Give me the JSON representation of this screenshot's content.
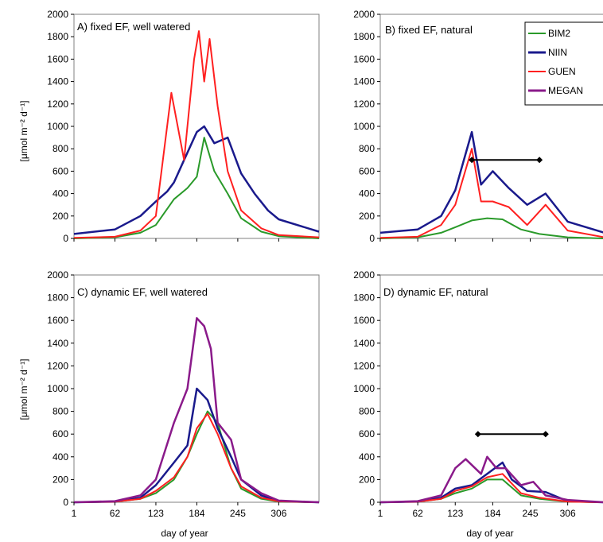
{
  "figure": {
    "xlabel": "day of year",
    "ylabel": "[μmol m⁻² d⁻¹]",
    "x_ticks": [
      "1",
      "62",
      "123",
      "184",
      "245",
      "306"
    ],
    "y_ticks": [
      "0",
      "200",
      "400",
      "600",
      "800",
      "1000",
      "1200",
      "1400",
      "1600",
      "1800",
      "2000"
    ]
  },
  "legend": {
    "items": [
      {
        "name": "BIM2",
        "color": "#2a9a2a"
      },
      {
        "name": "NIIN",
        "color": "#1a1a8c"
      },
      {
        "name": "GUEN",
        "color": "#ff2020"
      },
      {
        "name": "MEGAN",
        "color": "#8a1a8a"
      }
    ]
  },
  "chart_data": [
    {
      "type": "line",
      "title": "A) fixed EF, well watered",
      "ylim": [
        0,
        2000
      ],
      "xlim": [
        1,
        366
      ],
      "series": [
        {
          "name": "BIM2",
          "color": "#2a9a2a",
          "x": [
            1,
            62,
            100,
            123,
            150,
            170,
            184,
            195,
            210,
            230,
            250,
            280,
            306,
            366
          ],
          "values": [
            0,
            10,
            50,
            120,
            350,
            450,
            550,
            900,
            600,
            400,
            180,
            60,
            20,
            0
          ]
        },
        {
          "name": "NIIN",
          "color": "#1a1a8c",
          "x": [
            1,
            62,
            100,
            123,
            140,
            150,
            165,
            184,
            195,
            210,
            230,
            250,
            270,
            290,
            306,
            366
          ],
          "values": [
            40,
            80,
            200,
            330,
            420,
            500,
            700,
            950,
            1000,
            850,
            900,
            580,
            400,
            250,
            170,
            60
          ]
        },
        {
          "name": "GUEN",
          "color": "#ff2020",
          "x": [
            1,
            62,
            100,
            123,
            146,
            165,
            180,
            187,
            195,
            203,
            215,
            230,
            250,
            280,
            306,
            366
          ],
          "values": [
            5,
            15,
            70,
            200,
            1300,
            700,
            1600,
            1850,
            1400,
            1780,
            1180,
            600,
            250,
            90,
            30,
            10
          ]
        }
      ],
      "bars": []
    },
    {
      "type": "line",
      "title": "B) fixed EF, natural",
      "ylim": [
        0,
        2000
      ],
      "xlim": [
        1,
        366
      ],
      "series": [
        {
          "name": "BIM2",
          "color": "#2a9a2a",
          "x": [
            1,
            62,
            100,
            123,
            150,
            175,
            200,
            230,
            260,
            306,
            366
          ],
          "values": [
            0,
            10,
            50,
            100,
            160,
            180,
            170,
            80,
            40,
            10,
            0
          ]
        },
        {
          "name": "NIIN",
          "color": "#1a1a8c",
          "x": [
            1,
            62,
            100,
            123,
            150,
            165,
            184,
            210,
            240,
            270,
            306,
            366
          ],
          "values": [
            50,
            80,
            200,
            430,
            950,
            480,
            600,
            450,
            300,
            400,
            150,
            50
          ]
        },
        {
          "name": "GUEN",
          "color": "#ff2020",
          "x": [
            1,
            62,
            100,
            123,
            150,
            165,
            184,
            210,
            240,
            270,
            306,
            366
          ],
          "values": [
            5,
            15,
            120,
            300,
            800,
            330,
            330,
            280,
            120,
            300,
            70,
            10
          ]
        }
      ],
      "bars": [
        {
          "x_start": 150,
          "x_end": 260,
          "y": 700
        }
      ]
    },
    {
      "type": "line",
      "title": "C) dynamic EF, well watered",
      "ylim": [
        0,
        2000
      ],
      "xlim": [
        1,
        366
      ],
      "series": [
        {
          "name": "BIM2",
          "color": "#2a9a2a",
          "x": [
            1,
            62,
            100,
            123,
            150,
            170,
            184,
            200,
            215,
            235,
            250,
            280,
            306,
            366
          ],
          "values": [
            0,
            5,
            30,
            80,
            200,
            400,
            600,
            800,
            700,
            300,
            120,
            30,
            5,
            0
          ]
        },
        {
          "name": "NIIN",
          "color": "#1a1a8c",
          "x": [
            1,
            62,
            100,
            123,
            150,
            170,
            184,
            200,
            215,
            235,
            250,
            280,
            306,
            366
          ],
          "values": [
            0,
            5,
            40,
            150,
            350,
            500,
            1000,
            900,
            650,
            400,
            200,
            60,
            10,
            0
          ]
        },
        {
          "name": "GUEN",
          "color": "#ff2020",
          "x": [
            1,
            62,
            100,
            123,
            150,
            170,
            184,
            200,
            215,
            235,
            250,
            280,
            306,
            366
          ],
          "values": [
            0,
            5,
            30,
            100,
            220,
            400,
            650,
            780,
            600,
            300,
            140,
            40,
            8,
            0
          ]
        },
        {
          "name": "MEGAN",
          "color": "#8a1a8a",
          "x": [
            1,
            62,
            100,
            123,
            150,
            170,
            184,
            195,
            205,
            215,
            235,
            250,
            280,
            306,
            366
          ],
          "values": [
            0,
            10,
            60,
            200,
            700,
            1000,
            1620,
            1550,
            1350,
            700,
            550,
            200,
            80,
            15,
            0
          ]
        }
      ],
      "bars": []
    },
    {
      "type": "line",
      "title": "D) dynamic EF, natural",
      "ylim": [
        0,
        2000
      ],
      "xlim": [
        1,
        366
      ],
      "series": [
        {
          "name": "BIM2",
          "color": "#2a9a2a",
          "x": [
            1,
            62,
            100,
            123,
            150,
            175,
            200,
            230,
            260,
            306,
            366
          ],
          "values": [
            0,
            5,
            30,
            80,
            120,
            200,
            200,
            60,
            30,
            5,
            0
          ]
        },
        {
          "name": "NIIN",
          "color": "#1a1a8c",
          "x": [
            1,
            62,
            100,
            123,
            150,
            175,
            200,
            215,
            240,
            270,
            306,
            366
          ],
          "values": [
            0,
            5,
            40,
            120,
            150,
            250,
            350,
            200,
            100,
            90,
            10,
            0
          ]
        },
        {
          "name": "GUEN",
          "color": "#ff2020",
          "x": [
            1,
            62,
            100,
            123,
            150,
            175,
            200,
            230,
            260,
            306,
            366
          ],
          "values": [
            0,
            5,
            30,
            100,
            140,
            220,
            250,
            80,
            40,
            5,
            0
          ]
        },
        {
          "name": "MEGAN",
          "color": "#8a1a8a",
          "x": [
            1,
            62,
            100,
            123,
            140,
            165,
            175,
            190,
            205,
            230,
            250,
            270,
            306,
            366
          ],
          "values": [
            0,
            10,
            60,
            300,
            380,
            250,
            400,
            300,
            300,
            150,
            180,
            60,
            20,
            0
          ]
        }
      ],
      "bars": [
        {
          "x_start": 160,
          "x_end": 270,
          "y": 600
        }
      ]
    }
  ]
}
